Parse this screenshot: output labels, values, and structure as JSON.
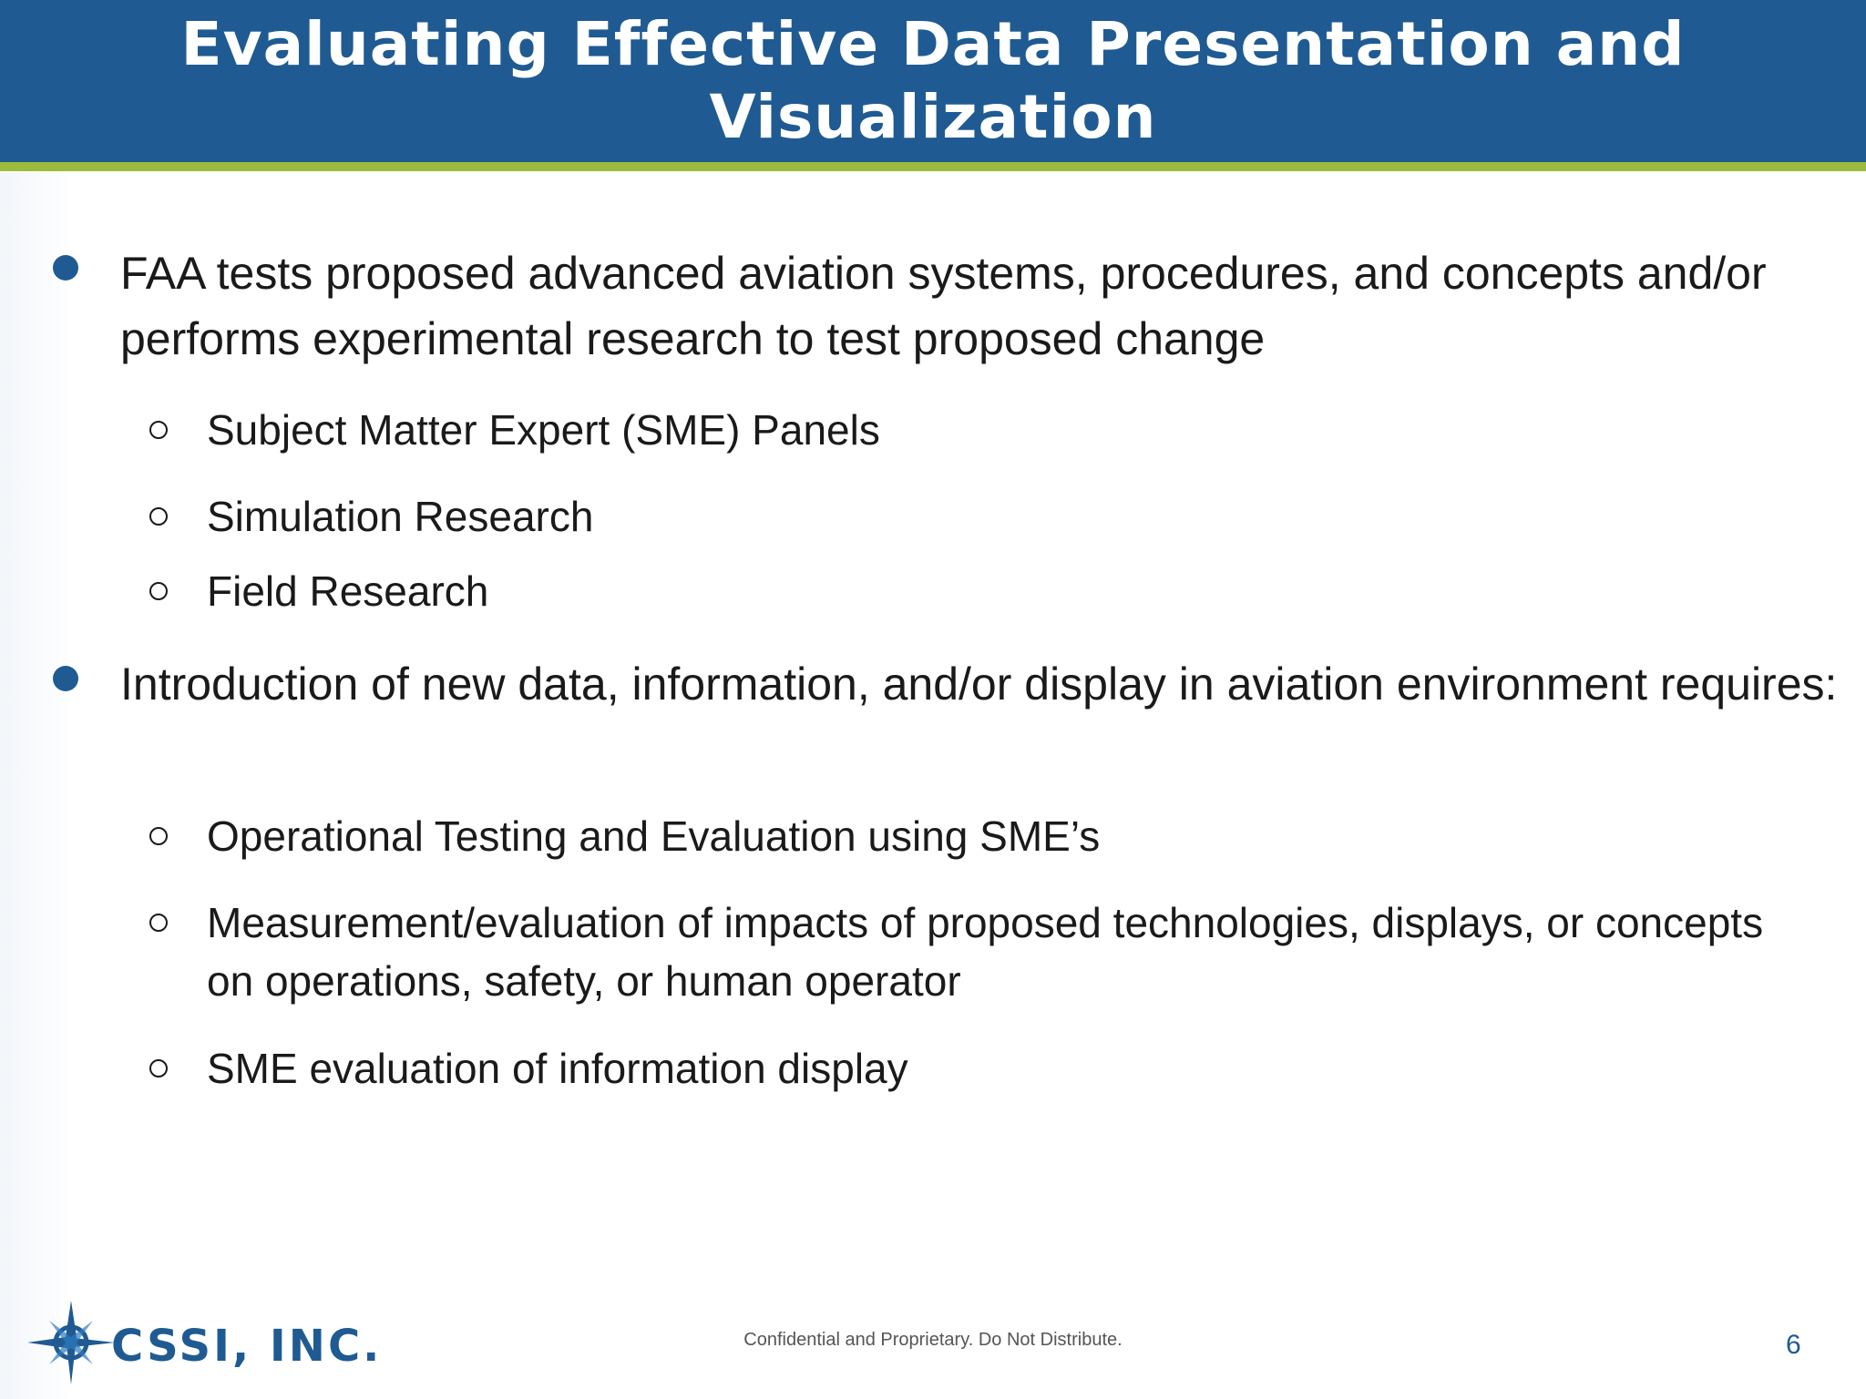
{
  "slide": {
    "title": "Evaluating Effective Data Presentation and Visualization",
    "bullets": [
      {
        "text": "FAA tests proposed advanced aviation systems, procedures, and concepts and/or performs experimental research to test proposed change",
        "subitems": [
          "Subject Matter Expert (SME) Panels",
          "Simulation Research",
          "Field Research"
        ]
      },
      {
        "text": "Introduction of new data, information, and/or display in aviation environment requires:",
        "subitems": [
          "Operational Testing and Evaluation using SME’s",
          "Measurement/evaluation of impacts of proposed technologies, displays, or concepts on operations, safety, or human operator",
          "SME evaluation of information display"
        ]
      }
    ],
    "footer": "Confidential and Proprietary. Do Not Distribute.",
    "page_number": "6",
    "logo_text": "CSSI, INC."
  },
  "colors": {
    "header_blue": "#1f5b92",
    "accent_green": "#9bbb3d"
  },
  "icons": {
    "logo": "compass-star-icon"
  }
}
